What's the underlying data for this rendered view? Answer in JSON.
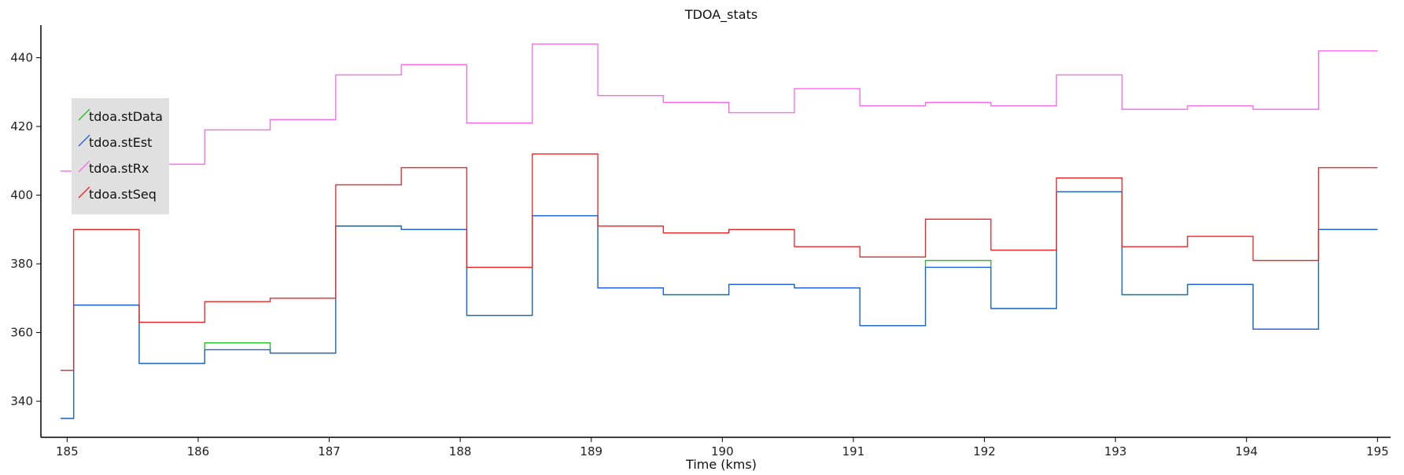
{
  "chart_data": {
    "type": "line",
    "step": true,
    "title": "TDOA_stats",
    "xlabel": "Time (kms)",
    "ylabel": "",
    "xlim": [
      184.8,
      195.1
    ],
    "ylim": [
      329.5,
      449.5
    ],
    "xticks": [
      185,
      186,
      187,
      188,
      189,
      190,
      191,
      192,
      193,
      194,
      195
    ],
    "yticks": [
      340,
      360,
      380,
      400,
      420,
      440
    ],
    "grid": false,
    "legend_position": "top-left",
    "series": [
      {
        "name": "tdoa.stData",
        "color": "#22bb22",
        "x": [
          184.95,
          185.05,
          185.55,
          186.05,
          186.55,
          187.05,
          187.55,
          188.05,
          188.55,
          189.05,
          189.55,
          190.05,
          190.55,
          191.05,
          191.55,
          192.05,
          192.55,
          193.05,
          193.55,
          194.05,
          194.55,
          195.0
        ],
        "y": [
          335,
          368,
          351,
          357,
          354,
          391,
          390,
          365,
          394,
          373,
          371,
          374,
          373,
          362,
          381,
          367,
          401,
          371,
          374,
          361,
          390,
          390
        ]
      },
      {
        "name": "tdoa.stEst",
        "color": "#1f5fe0",
        "x": [
          184.95,
          185.05,
          185.55,
          186.05,
          186.55,
          187.05,
          187.55,
          188.05,
          188.55,
          189.05,
          189.55,
          190.05,
          190.55,
          191.05,
          191.55,
          192.05,
          192.55,
          193.05,
          193.55,
          194.05,
          194.55,
          195.0
        ],
        "y": [
          335,
          368,
          351,
          355,
          354,
          391,
          390,
          365,
          394,
          373,
          371,
          374,
          373,
          362,
          379,
          367,
          401,
          371,
          374,
          361,
          390,
          390
        ]
      },
      {
        "name": "tdoa.stRx",
        "color": "#ff66ee",
        "x": [
          184.95,
          185.05,
          185.55,
          186.05,
          186.55,
          187.05,
          187.55,
          188.05,
          188.55,
          189.05,
          189.55,
          190.05,
          190.55,
          191.05,
          191.55,
          192.05,
          192.55,
          193.05,
          193.55,
          194.05,
          194.55,
          195.0
        ],
        "y": [
          407,
          428,
          409,
          419,
          422,
          435,
          438,
          421,
          444,
          429,
          427,
          424,
          431,
          426,
          427,
          426,
          435,
          425,
          426,
          425,
          442,
          442
        ]
      },
      {
        "name": "tdoa.stSeq",
        "color": "#ee2222",
        "x": [
          184.95,
          185.05,
          185.55,
          186.05,
          186.55,
          187.05,
          187.55,
          188.05,
          188.55,
          189.05,
          189.55,
          190.05,
          190.55,
          191.05,
          191.55,
          192.05,
          192.55,
          193.05,
          193.55,
          194.05,
          194.55,
          195.0
        ],
        "y": [
          349,
          390,
          363,
          369,
          370,
          403,
          408,
          379,
          412,
          391,
          389,
          390,
          385,
          382,
          393,
          384,
          405,
          385,
          388,
          381,
          408,
          408
        ]
      }
    ]
  }
}
